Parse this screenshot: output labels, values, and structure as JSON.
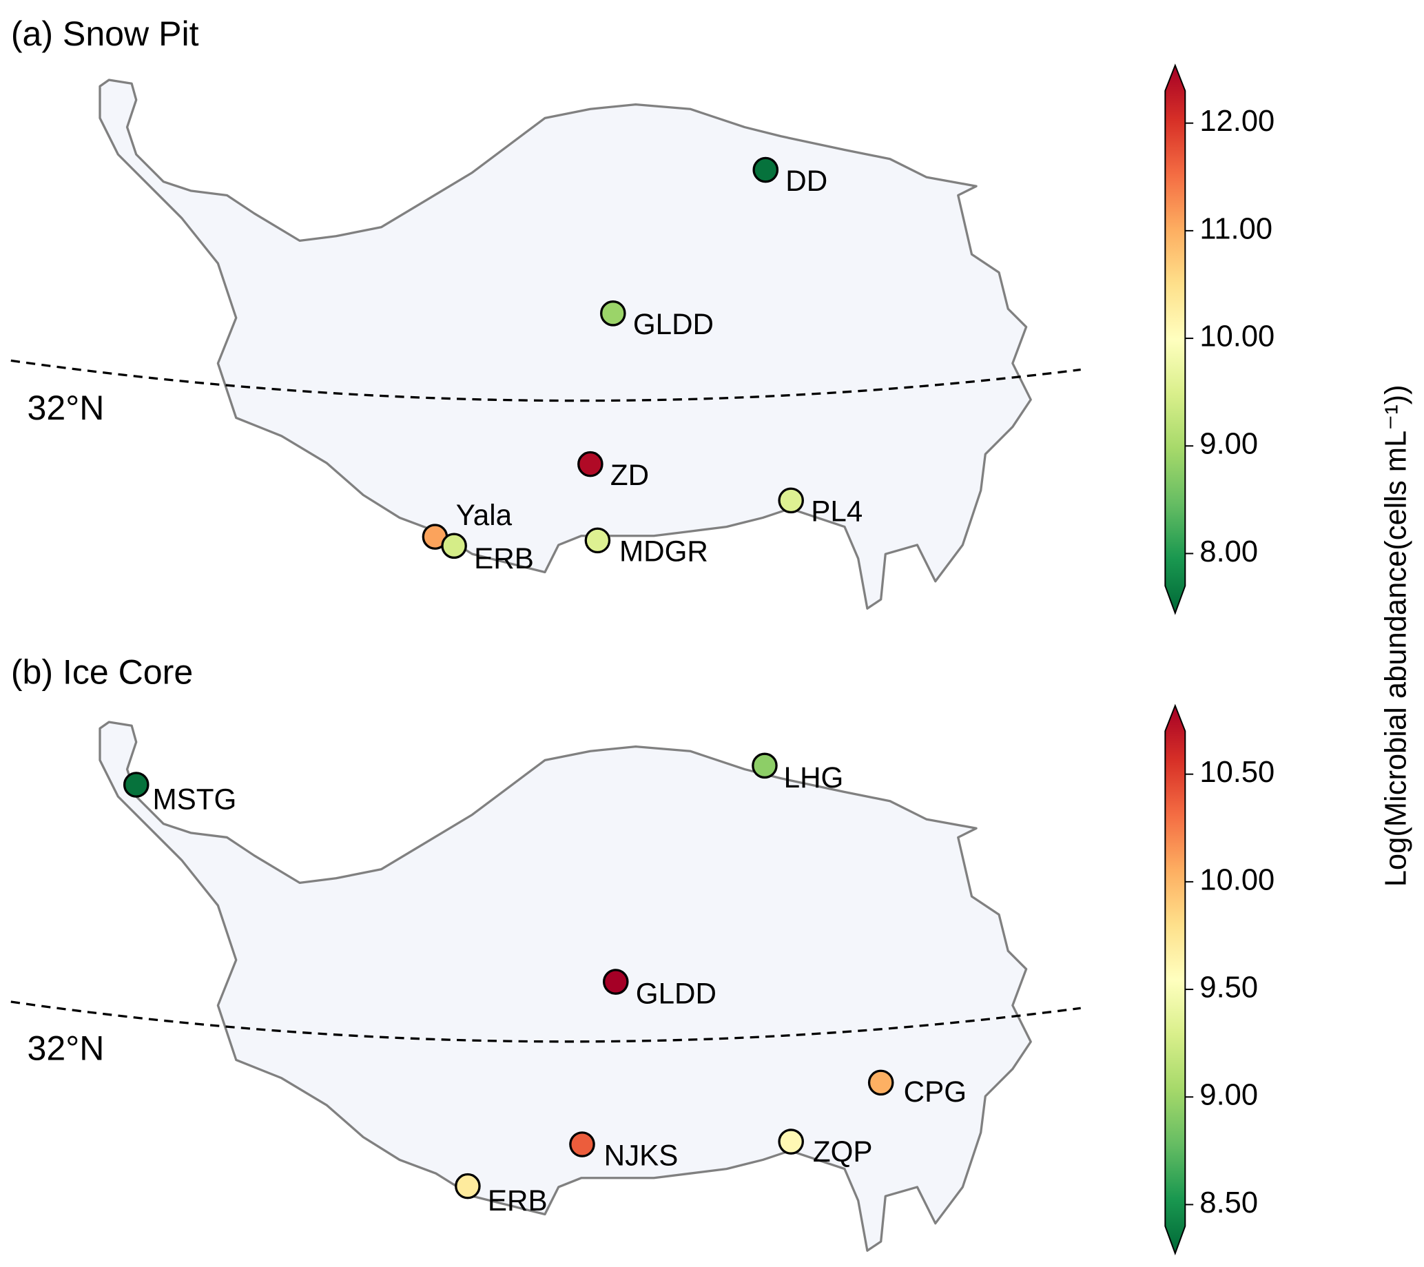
{
  "colorbar_label": "Log(Microbial abundance(cells mL⁻¹))",
  "colormap": [
    "#006837",
    "#1a9850",
    "#66bd63",
    "#a6d96a",
    "#d9ef8b",
    "#ffffbf",
    "#fee08b",
    "#fdae61",
    "#f46d43",
    "#d73027",
    "#a50026"
  ],
  "panels": [
    {
      "title": "(a) Snow Pit",
      "latitude_label": "32°N",
      "colorbar": {
        "ylim": [
          7.7,
          12.3
        ],
        "ticks": [
          {
            "value": 8,
            "label": "8.00"
          },
          {
            "value": 9,
            "label": "9.00"
          },
          {
            "value": 10,
            "label": "10.00"
          },
          {
            "value": 11,
            "label": "11.00"
          },
          {
            "value": 12,
            "label": "12.00"
          }
        ]
      },
      "sites": [
        {
          "label": "DD",
          "value": 7.8
        },
        {
          "label": "GLDD",
          "value": 9.0
        },
        {
          "label": "ZD",
          "value": 12.2
        },
        {
          "label": "PL4",
          "value": 9.6
        },
        {
          "label": "Yala",
          "value": 11.0
        },
        {
          "label": "ERB",
          "value": 9.5
        },
        {
          "label": "MDGR",
          "value": 9.6
        }
      ]
    },
    {
      "title": "(b) Ice Core",
      "latitude_label": "32°N",
      "colorbar": {
        "ylim": [
          8.4,
          10.7
        ],
        "ticks": [
          {
            "value": 8.5,
            "label": "8.50"
          },
          {
            "value": 9,
            "label": "9.00"
          },
          {
            "value": 9.5,
            "label": "9.50"
          },
          {
            "value": 10,
            "label": "10.00"
          },
          {
            "value": 10.5,
            "label": "10.50"
          }
        ]
      },
      "sites": [
        {
          "label": "MSTG",
          "value": 8.45
        },
        {
          "label": "LHG",
          "value": 9.0
        },
        {
          "label": "GLDD",
          "value": 10.7
        },
        {
          "label": "CPG",
          "value": 10.0
        },
        {
          "label": "ZQP",
          "value": 9.6
        },
        {
          "label": "NJKS",
          "value": 10.3
        },
        {
          "label": "ERB",
          "value": 9.7
        }
      ]
    }
  ]
}
